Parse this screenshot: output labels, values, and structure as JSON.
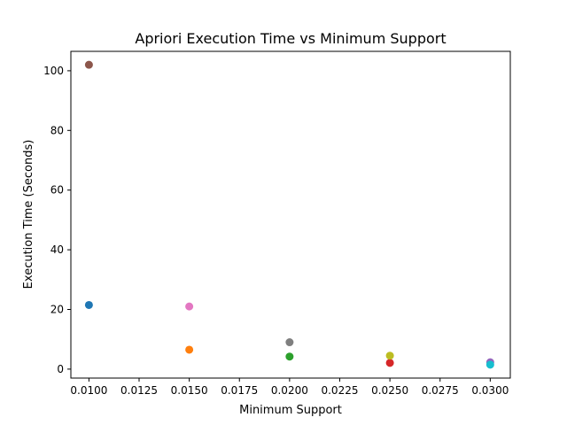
{
  "chart_data": {
    "type": "scatter",
    "title": "Apriori Execution Time vs Minimum Support",
    "xlabel": "Minimum Support",
    "ylabel": "Execution Time (Seconds)",
    "xlim": [
      0.0091,
      0.031
    ],
    "ylim": [
      -3,
      106.5
    ],
    "grid": false,
    "x_ticks": [
      0.01,
      0.0125,
      0.015,
      0.0175,
      0.02,
      0.0225,
      0.025,
      0.0275,
      0.03
    ],
    "x_tick_labels": [
      "0.0100",
      "0.0125",
      "0.0150",
      "0.0175",
      "0.0200",
      "0.0225",
      "0.0250",
      "0.0275",
      "0.0300"
    ],
    "y_ticks": [
      0,
      20,
      40,
      60,
      80,
      100
    ],
    "y_tick_labels": [
      "0",
      "20",
      "40",
      "60",
      "80",
      "100"
    ],
    "points": [
      {
        "x": 0.01,
        "y": 21.5,
        "color": "#1f77b4"
      },
      {
        "x": 0.015,
        "y": 6.5,
        "color": "#ff7f0e"
      },
      {
        "x": 0.02,
        "y": 4.2,
        "color": "#2ca02c"
      },
      {
        "x": 0.025,
        "y": 2.1,
        "color": "#d62728"
      },
      {
        "x": 0.03,
        "y": 2.3,
        "color": "#9467bd"
      },
      {
        "x": 0.01,
        "y": 102.0,
        "color": "#8c564b"
      },
      {
        "x": 0.015,
        "y": 21.0,
        "color": "#e377c2"
      },
      {
        "x": 0.02,
        "y": 9.0,
        "color": "#7f7f7f"
      },
      {
        "x": 0.025,
        "y": 4.5,
        "color": "#bcbd22"
      },
      {
        "x": 0.03,
        "y": 1.5,
        "color": "#17becf"
      }
    ]
  }
}
